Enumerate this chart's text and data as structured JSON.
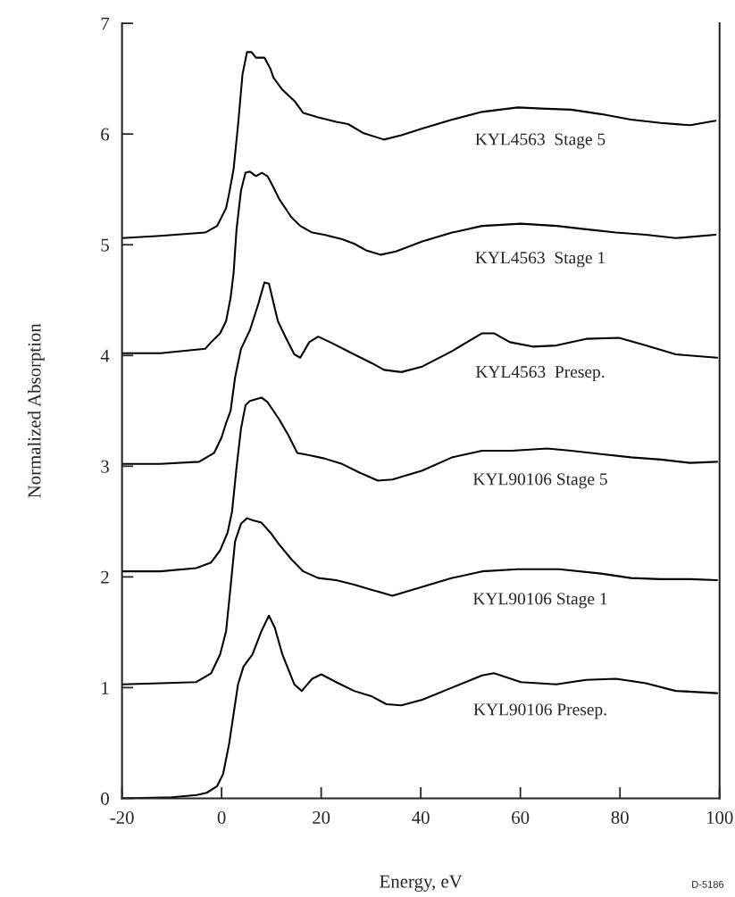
{
  "chart_data": {
    "type": "line",
    "xlabel": "Energy, eV",
    "ylabel": "Normalized Absorption",
    "xlim": [
      -20,
      100
    ],
    "ylim": [
      0,
      7
    ],
    "xticks": [
      -20,
      0,
      20,
      40,
      60,
      80,
      100
    ],
    "yticks": [
      0,
      1,
      2,
      3,
      4,
      5,
      6,
      7
    ],
    "grid": false,
    "marker": "none",
    "line_style": "solid",
    "series": [
      {
        "name": "KYL4563  Stage 5",
        "color": "#000000",
        "x": [
          -20,
          -12.3,
          -3.3,
          -0.9,
          0.9,
          1.5,
          2.4,
          3.3,
          4.2,
          5.1,
          6.0,
          6.9,
          8.6,
          9.8,
          10.4,
          12.2,
          14.6,
          16.4,
          19.4,
          23.0,
          25.4,
          28.4,
          32.6,
          36.1,
          40.3,
          46.3,
          52.3,
          59.5,
          64.3,
          70.2,
          76.2,
          82.2,
          88.2,
          94.1,
          99.2
        ],
        "values": [
          5.06,
          5.08,
          5.11,
          5.17,
          5.33,
          5.46,
          5.68,
          6.08,
          6.54,
          6.74,
          6.74,
          6.69,
          6.69,
          6.59,
          6.51,
          6.4,
          6.3,
          6.19,
          6.15,
          6.11,
          6.09,
          6.01,
          5.95,
          5.99,
          6.05,
          6.13,
          6.2,
          6.24,
          6.23,
          6.22,
          6.18,
          6.13,
          6.1,
          6.08,
          6.12
        ]
      },
      {
        "name": "KYL4563  Stage 1",
        "color": "#000000",
        "x": [
          -20,
          -12.3,
          -3.3,
          -2.1,
          -0.3,
          0.9,
          1.8,
          2.4,
          3.0,
          3.9,
          4.8,
          5.7,
          6.9,
          8.1,
          9.2,
          10.4,
          11.6,
          12.8,
          14.0,
          15.8,
          18.2,
          20.6,
          24.2,
          26.6,
          29.0,
          32.0,
          35.0,
          40.3,
          46.3,
          52.3,
          60.1,
          67.3,
          73.2,
          79.2,
          85.2,
          91.2,
          99.2
        ],
        "values": [
          4.02,
          4.02,
          4.06,
          4.12,
          4.2,
          4.31,
          4.52,
          4.74,
          5.14,
          5.49,
          5.65,
          5.66,
          5.62,
          5.65,
          5.62,
          5.52,
          5.41,
          5.33,
          5.25,
          5.17,
          5.11,
          5.09,
          5.05,
          5.01,
          4.95,
          4.91,
          4.94,
          5.03,
          5.11,
          5.17,
          5.19,
          5.17,
          5.14,
          5.11,
          5.09,
          5.06,
          5.09
        ]
      },
      {
        "name": "KYL4563  Presep.",
        "color": "#000000",
        "x": [
          -20,
          -12.3,
          -4.5,
          -1.5,
          0.0,
          0.9,
          1.8,
          2.7,
          3.9,
          5.7,
          7.4,
          8.6,
          9.5,
          11.3,
          12.8,
          14.6,
          15.8,
          17.6,
          19.4,
          21.8,
          26.6,
          30.2,
          32.6,
          36.1,
          40.3,
          46.3,
          52.3,
          54.7,
          57.9,
          62.5,
          67.2,
          73.2,
          79.8,
          85.2,
          91.2,
          99.5
        ],
        "values": [
          3.02,
          3.02,
          3.04,
          3.12,
          3.26,
          3.39,
          3.5,
          3.8,
          4.06,
          4.23,
          4.47,
          4.66,
          4.65,
          4.31,
          4.17,
          4.01,
          3.98,
          4.12,
          4.17,
          4.12,
          4.01,
          3.93,
          3.87,
          3.85,
          3.9,
          4.04,
          4.2,
          4.2,
          4.12,
          4.08,
          4.09,
          4.15,
          4.16,
          4.09,
          4.01,
          3.98
        ]
      },
      {
        "name": "KYL90106 Stage 5",
        "color": "#000000",
        "x": [
          -20,
          -12.3,
          -5.1,
          -2.1,
          -0.3,
          1.2,
          2.1,
          3.0,
          3.9,
          4.8,
          5.7,
          8.0,
          9.2,
          10.4,
          11.6,
          13.4,
          15.2,
          17.6,
          20.6,
          24.2,
          27.8,
          31.4,
          34.3,
          40.3,
          46.3,
          52.3,
          58.3,
          65.4,
          70.2,
          76.2,
          82.2,
          88.2,
          94.1,
          99.5
        ],
        "values": [
          2.05,
          2.05,
          2.08,
          2.13,
          2.24,
          2.4,
          2.59,
          2.99,
          3.34,
          3.55,
          3.59,
          3.62,
          3.58,
          3.5,
          3.42,
          3.28,
          3.12,
          3.1,
          3.07,
          3.02,
          2.94,
          2.87,
          2.88,
          2.96,
          3.08,
          3.14,
          3.14,
          3.16,
          3.14,
          3.11,
          3.08,
          3.06,
          3.03,
          3.04
        ]
      },
      {
        "name": "KYL90106 Stage 1",
        "color": "#000000",
        "x": [
          -20,
          -12.3,
          -5.1,
          -2.1,
          -0.3,
          0.9,
          1.8,
          2.7,
          3.9,
          5.1,
          6.3,
          8.0,
          9.8,
          11.6,
          14.0,
          16.4,
          19.4,
          23.0,
          26.6,
          29.6,
          32.0,
          34.3,
          40.3,
          46.3,
          52.3,
          59.5,
          67.8,
          76.2,
          82.2,
          88.2,
          94.1,
          99.5
        ],
        "values": [
          1.03,
          1.04,
          1.05,
          1.13,
          1.3,
          1.51,
          1.91,
          2.32,
          2.48,
          2.53,
          2.51,
          2.49,
          2.4,
          2.29,
          2.16,
          2.05,
          1.99,
          1.97,
          1.93,
          1.89,
          1.86,
          1.83,
          1.91,
          1.99,
          2.05,
          2.07,
          2.07,
          2.03,
          1.99,
          1.98,
          1.98,
          1.97
        ]
      },
      {
        "name": "KYL90106 Presep.",
        "color": "#000000",
        "x": [
          -20,
          -10,
          -5,
          -3,
          -0.9,
          0.3,
          1.5,
          2.4,
          3.3,
          4.4,
          6.2,
          8.0,
          9.5,
          10.7,
          12.2,
          14.6,
          16.1,
          18.2,
          20.0,
          23.0,
          26.6,
          30.2,
          33.1,
          36.1,
          40.3,
          46.3,
          52.3,
          54.7,
          60.1,
          67.2,
          73.2,
          79.2,
          85.2,
          91.2,
          99.5
        ],
        "values": [
          0.0,
          0.01,
          0.03,
          0.05,
          0.11,
          0.22,
          0.49,
          0.76,
          1.03,
          1.19,
          1.3,
          1.51,
          1.65,
          1.54,
          1.3,
          1.03,
          0.97,
          1.08,
          1.12,
          1.05,
          0.97,
          0.92,
          0.85,
          0.84,
          0.89,
          1.0,
          1.11,
          1.13,
          1.05,
          1.03,
          1.07,
          1.08,
          1.04,
          0.97,
          0.95
        ]
      }
    ],
    "annotations": [
      "D-5186"
    ]
  }
}
